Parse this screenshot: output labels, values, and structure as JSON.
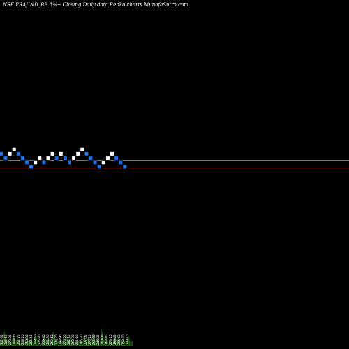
{
  "chart_data": {
    "type": "renko",
    "title": "NSE PRAJIND_BE 8%~ Closing Daily data  Renko  charts MunafaSutra.com",
    "brick_pct": 8,
    "colors": {
      "background": "#000000",
      "up_brick": "#ffffff",
      "down_brick": "#1e6fe0",
      "reference_line": "#b8601e",
      "volume_area": "#1b4d12"
    },
    "reference_lines": [
      {
        "name": "upper",
        "relative_level": 1
      },
      {
        "name": "lower",
        "relative_level": -1
      }
    ],
    "bricks": [
      {
        "dir": "down",
        "level": 0
      },
      {
        "dir": "down",
        "level": -1
      },
      {
        "dir": "up",
        "level": 0
      },
      {
        "dir": "up",
        "level": 1
      },
      {
        "dir": "down",
        "level": 0
      },
      {
        "dir": "down",
        "level": -1
      },
      {
        "dir": "down",
        "level": -2
      },
      {
        "dir": "down",
        "level": -3
      },
      {
        "dir": "up",
        "level": -2
      },
      {
        "dir": "up",
        "level": -1
      },
      {
        "dir": "down",
        "level": -2
      },
      {
        "dir": "up",
        "level": -1
      },
      {
        "dir": "up",
        "level": 0
      },
      {
        "dir": "down",
        "level": -1
      },
      {
        "dir": "up",
        "level": 0
      },
      {
        "dir": "down",
        "level": -1
      },
      {
        "dir": "down",
        "level": -2
      },
      {
        "dir": "up",
        "level": -1
      },
      {
        "dir": "up",
        "level": 0
      },
      {
        "dir": "up",
        "level": 1
      },
      {
        "dir": "down",
        "level": 0
      },
      {
        "dir": "down",
        "level": -1
      },
      {
        "dir": "down",
        "level": -2
      },
      {
        "dir": "down",
        "level": -3
      },
      {
        "dir": "up",
        "level": -2
      },
      {
        "dir": "up",
        "level": -1
      },
      {
        "dir": "up",
        "level": 0
      },
      {
        "dir": "down",
        "level": -1
      },
      {
        "dir": "down",
        "level": -2
      },
      {
        "dir": "down",
        "level": -3
      }
    ],
    "volume_labels": [
      "301.65",
      "305.55",
      "278.85",
      "289.00",
      "251.75",
      "248.20",
      "253.80",
      "255.55",
      "248.50",
      "226.80",
      "259.40",
      "262.30",
      "269.50",
      "274.70",
      "298.90",
      "276.50",
      "282.15",
      "262.30",
      "281.00",
      "285.30",
      "277.05",
      "275.15",
      "265.00",
      "244.85",
      "260.05",
      "267.45",
      "273.10",
      "299.65",
      "265.60",
      "259.70",
      "233.10"
    ],
    "volume_profile": [
      0.3,
      0.6,
      0.25,
      0.5,
      0.35,
      0.15,
      0.4,
      0.3,
      0.55,
      0.2,
      0.45,
      0.35,
      0.6,
      0.3,
      0.25,
      0.5,
      0.4,
      0.2,
      0.3,
      0.45,
      0.35,
      0.55,
      0.3,
      0.65,
      0.4,
      0.25,
      0.5,
      0.35,
      0.3,
      0.45,
      0.2
    ]
  }
}
